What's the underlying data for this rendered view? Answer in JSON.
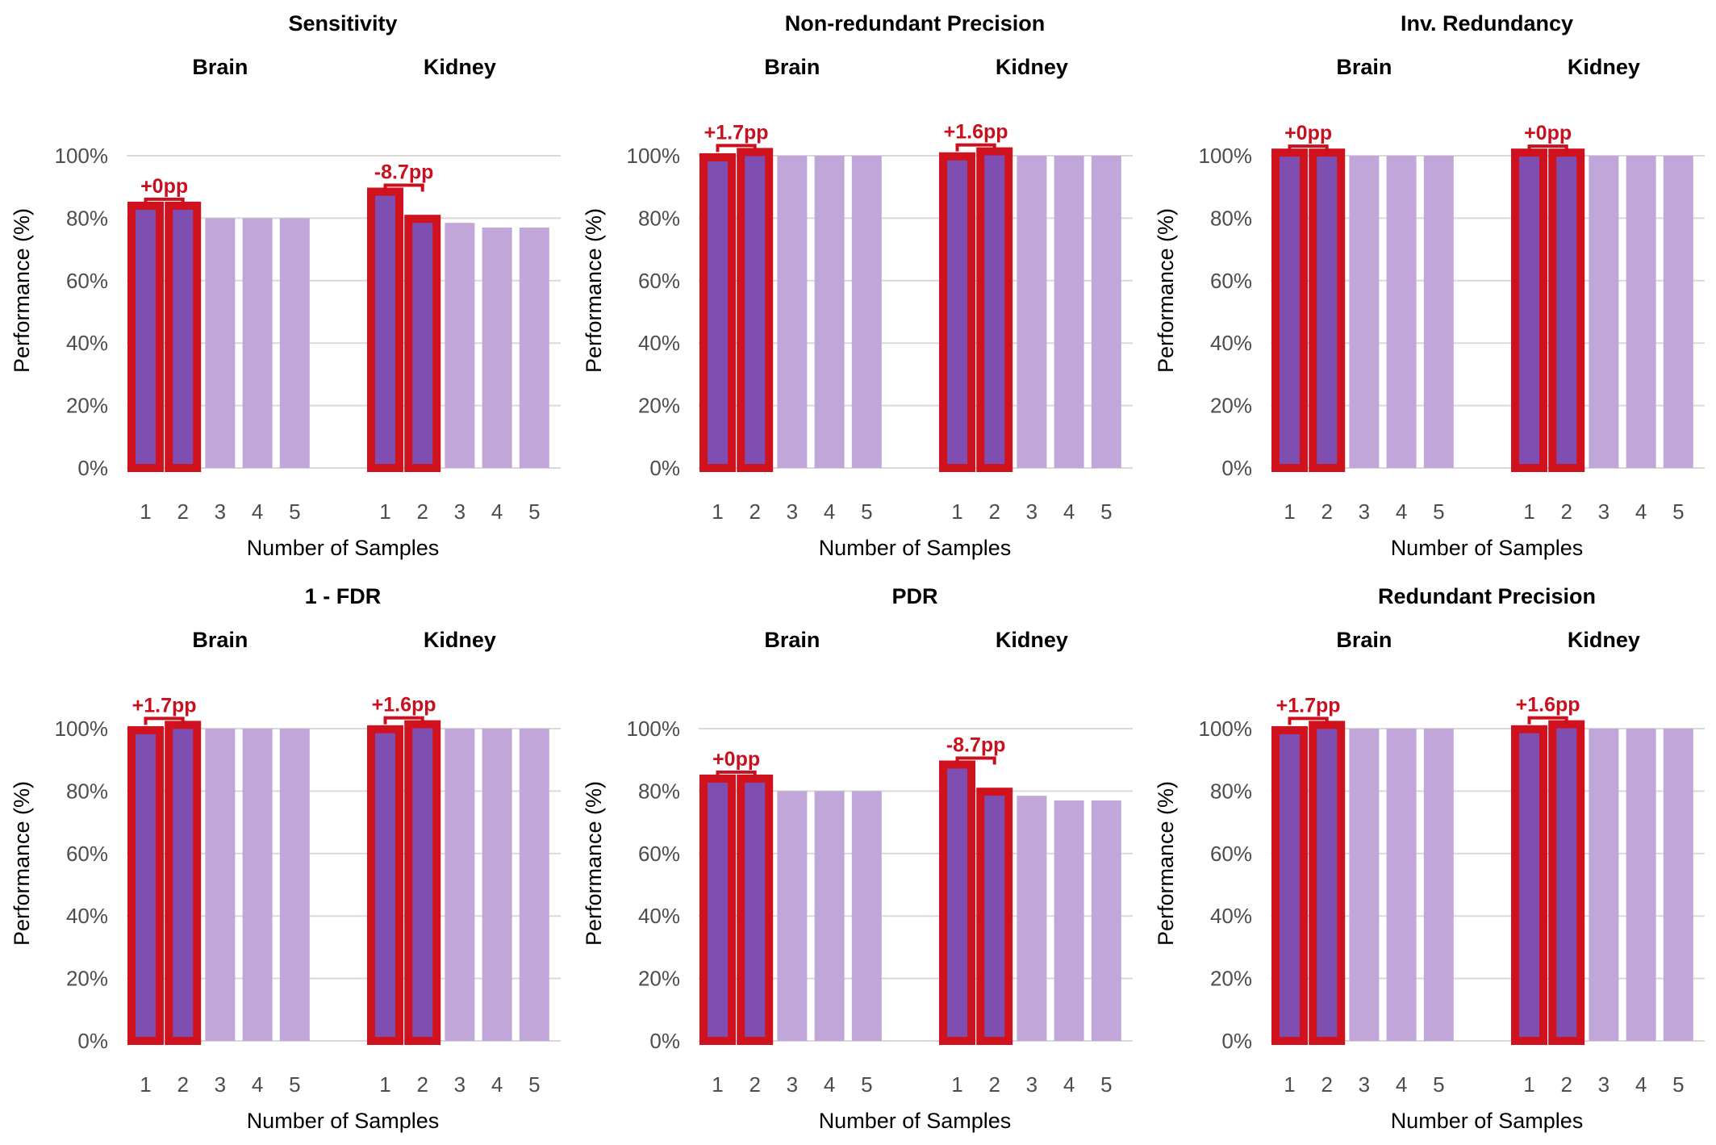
{
  "chart_data": [
    {
      "type": "bar",
      "title": "Sensitivity",
      "xlabel": "Number of Samples",
      "ylabel": "Performance (%)",
      "ylim": [
        0,
        100
      ],
      "yticks": [
        "0%",
        "20%",
        "40%",
        "60%",
        "80%",
        "100%"
      ],
      "grid": "horizontal",
      "highlight_samples": [
        1,
        2
      ],
      "panels": [
        {
          "tissue": "Brain",
          "categories": [
            "1",
            "2",
            "3",
            "4",
            "5"
          ],
          "values": [
            84.0,
            84.0,
            80.0,
            80.0,
            80.0
          ],
          "annotation": "+0pp"
        },
        {
          "tissue": "Kidney",
          "categories": [
            "1",
            "2",
            "3",
            "4",
            "5"
          ],
          "values": [
            88.5,
            79.8,
            78.5,
            77.0,
            77.0
          ],
          "annotation": "-8.7pp"
        }
      ]
    },
    {
      "type": "bar",
      "title": "Non-redundant Precision",
      "xlabel": "Number of Samples",
      "ylabel": "Performance (%)",
      "ylim": [
        0,
        100
      ],
      "yticks": [
        "0%",
        "20%",
        "40%",
        "60%",
        "80%",
        "100%"
      ],
      "grid": "horizontal",
      "highlight_samples": [
        1,
        2
      ],
      "panels": [
        {
          "tissue": "Brain",
          "categories": [
            "1",
            "2",
            "3",
            "4",
            "5"
          ],
          "values": [
            99.5,
            101.2,
            100.0,
            100.0,
            100.0
          ],
          "annotation": "+1.7pp"
        },
        {
          "tissue": "Kidney",
          "categories": [
            "1",
            "2",
            "3",
            "4",
            "5"
          ],
          "values": [
            99.8,
            101.4,
            100.0,
            100.0,
            100.0
          ],
          "annotation": "+1.6pp"
        }
      ]
    },
    {
      "type": "bar",
      "title": "Inv. Redundancy",
      "xlabel": "Number of Samples",
      "ylabel": "Performance (%)",
      "ylim": [
        0,
        100
      ],
      "yticks": [
        "0%",
        "20%",
        "40%",
        "60%",
        "80%",
        "100%"
      ],
      "grid": "horizontal",
      "highlight_samples": [
        1,
        2
      ],
      "panels": [
        {
          "tissue": "Brain",
          "categories": [
            "1",
            "2",
            "3",
            "4",
            "5"
          ],
          "values": [
            101.0,
            101.0,
            100.0,
            100.0,
            100.0
          ],
          "annotation": "+0pp"
        },
        {
          "tissue": "Kidney",
          "categories": [
            "1",
            "2",
            "3",
            "4",
            "5"
          ],
          "values": [
            101.0,
            101.0,
            100.0,
            100.0,
            100.0
          ],
          "annotation": "+0pp"
        }
      ]
    },
    {
      "type": "bar",
      "title": "1 - FDR",
      "xlabel": "Number of Samples",
      "ylabel": "Performance (%)",
      "ylim": [
        0,
        100
      ],
      "yticks": [
        "0%",
        "20%",
        "40%",
        "60%",
        "80%",
        "100%"
      ],
      "grid": "horizontal",
      "highlight_samples": [
        1,
        2
      ],
      "panels": [
        {
          "tissue": "Brain",
          "categories": [
            "1",
            "2",
            "3",
            "4",
            "5"
          ],
          "values": [
            99.5,
            101.2,
            100.0,
            100.0,
            100.0
          ],
          "annotation": "+1.7pp"
        },
        {
          "tissue": "Kidney",
          "categories": [
            "1",
            "2",
            "3",
            "4",
            "5"
          ],
          "values": [
            99.8,
            101.4,
            100.0,
            100.0,
            100.0
          ],
          "annotation": "+1.6pp"
        }
      ]
    },
    {
      "type": "bar",
      "title": "PDR",
      "xlabel": "Number of Samples",
      "ylabel": "Performance (%)",
      "ylim": [
        0,
        100
      ],
      "yticks": [
        "0%",
        "20%",
        "40%",
        "60%",
        "80%",
        "100%"
      ],
      "grid": "horizontal",
      "highlight_samples": [
        1,
        2
      ],
      "panels": [
        {
          "tissue": "Brain",
          "categories": [
            "1",
            "2",
            "3",
            "4",
            "5"
          ],
          "values": [
            84.0,
            84.0,
            80.0,
            80.0,
            80.0
          ],
          "annotation": "+0pp"
        },
        {
          "tissue": "Kidney",
          "categories": [
            "1",
            "2",
            "3",
            "4",
            "5"
          ],
          "values": [
            88.5,
            79.8,
            78.5,
            77.0,
            77.0
          ],
          "annotation": "-8.7pp"
        }
      ]
    },
    {
      "type": "bar",
      "title": "Redundant Precision",
      "xlabel": "Number of Samples",
      "ylabel": "Performance (%)",
      "ylim": [
        0,
        100
      ],
      "yticks": [
        "0%",
        "20%",
        "40%",
        "60%",
        "80%",
        "100%"
      ],
      "grid": "horizontal",
      "highlight_samples": [
        1,
        2
      ],
      "panels": [
        {
          "tissue": "Brain",
          "categories": [
            "1",
            "2",
            "3",
            "4",
            "5"
          ],
          "values": [
            99.5,
            101.2,
            100.0,
            100.0,
            100.0
          ],
          "annotation": "+1.7pp"
        },
        {
          "tissue": "Kidney",
          "categories": [
            "1",
            "2",
            "3",
            "4",
            "5"
          ],
          "values": [
            99.8,
            101.4,
            100.0,
            100.0,
            100.0
          ],
          "annotation": "+1.6pp"
        }
      ]
    }
  ],
  "colors": {
    "bar_highlight_fill": "#7e4fb0",
    "bar_highlight_outline": "#d0121f",
    "bar_muted_fill": "#c1a7d9",
    "annotation": "#c8101e",
    "grid": "#d9d9d9",
    "tick_text": "#4d4d4d",
    "label_text": "#000000"
  }
}
